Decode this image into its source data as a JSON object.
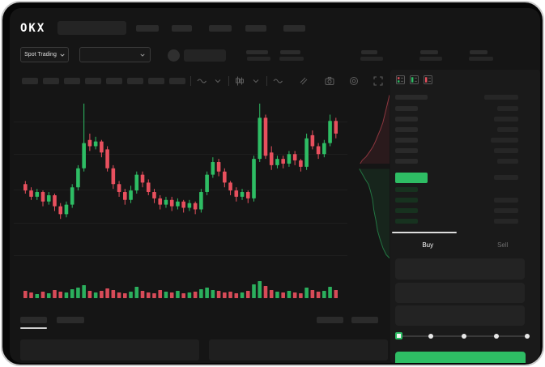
{
  "brand": {
    "logo_text": "OKX"
  },
  "ticker": {
    "market_selector_label": "Spot Trading"
  },
  "colors": {
    "up": "#2ebd64",
    "down": "#e8505e",
    "accent": "#2ebd64",
    "panel": "#1b1b1b"
  },
  "toolbar": {
    "icons": [
      "line-type-icon",
      "chevron-down-icon",
      "interval-dot-icon",
      "candle-type-icon",
      "chevron-down-icon",
      "indicator-wave-icon",
      "draw-lines-icon",
      "camera-icon",
      "settings-circle-icon",
      "fullscreen-icon"
    ]
  },
  "orderbook": {
    "view_mode_icons": [
      "book-combined-icon",
      "book-bids-icon",
      "book-asks-icon"
    ]
  },
  "trade_panel": {
    "buy_tab": "Buy",
    "sell_tab": "Sell"
  },
  "chart_data": {
    "type": "candlestick",
    "title": "",
    "x_axis": {
      "labels_visible": false
    },
    "y_axis": {
      "labels_visible": false,
      "price_scale": [
        0,
        100
      ]
    },
    "grid": "horizontal-faint",
    "candles": {
      "open": [
        46,
        42,
        38,
        41,
        35,
        39,
        32,
        27,
        33,
        44,
        56,
        74,
        70,
        73,
        68,
        56,
        46,
        41,
        36,
        42,
        52,
        47,
        41,
        37,
        33,
        36,
        32,
        35,
        31,
        34,
        30,
        41,
        52,
        60,
        54,
        47,
        42,
        38,
        41,
        37,
        62,
        88,
        66,
        58,
        62,
        59,
        65,
        61,
        57,
        77,
        70,
        65,
        72,
        86,
        78,
        84
      ],
      "close": [
        42,
        38,
        41,
        35,
        39,
        32,
        27,
        33,
        44,
        56,
        72,
        70,
        73,
        66,
        56,
        46,
        41,
        36,
        42,
        52,
        47,
        41,
        37,
        33,
        36,
        32,
        35,
        31,
        34,
        30,
        41,
        52,
        60,
        54,
        47,
        42,
        38,
        41,
        37,
        62,
        88,
        64,
        58,
        62,
        59,
        65,
        61,
        57,
        75,
        70,
        65,
        72,
        86,
        78,
        84,
        89
      ],
      "high": [
        48,
        44,
        43,
        42,
        41,
        40,
        34,
        35,
        46,
        58,
        97,
        78,
        76,
        74,
        70,
        58,
        48,
        43,
        45,
        54,
        54,
        49,
        43,
        39,
        38,
        38,
        37,
        36,
        36,
        35,
        43,
        54,
        63,
        62,
        56,
        48,
        44,
        43,
        42,
        64,
        97,
        90,
        70,
        64,
        64,
        67,
        67,
        62,
        78,
        80,
        72,
        74,
        90,
        88,
        86,
        97
      ],
      "low": [
        40,
        36,
        36,
        32,
        33,
        29,
        24,
        25,
        31,
        42,
        54,
        67,
        68,
        63,
        54,
        43,
        38,
        33,
        34,
        40,
        44,
        39,
        34,
        30,
        31,
        29,
        30,
        28,
        29,
        27,
        28,
        39,
        50,
        51,
        44,
        39,
        35,
        36,
        34,
        35,
        60,
        62,
        55,
        56,
        56,
        57,
        58,
        54,
        55,
        68,
        62,
        63,
        70,
        75,
        76,
        82
      ]
    },
    "volume": [
      9,
      7,
      5,
      8,
      6,
      10,
      8,
      7,
      11,
      13,
      16,
      9,
      7,
      9,
      12,
      10,
      7,
      6,
      8,
      14,
      9,
      7,
      6,
      10,
      8,
      7,
      9,
      6,
      7,
      8,
      11,
      13,
      10,
      9,
      7,
      8,
      6,
      7,
      9,
      17,
      21,
      15,
      10,
      8,
      7,
      9,
      7,
      6,
      13,
      10,
      8,
      9,
      14,
      10,
      8,
      11
    ],
    "depth": {
      "asks": [
        [
          1,
          0.02
        ],
        [
          0.96,
          0.06
        ],
        [
          0.92,
          0.1
        ],
        [
          0.88,
          0.14
        ],
        [
          0.84,
          0.18
        ],
        [
          0.78,
          0.22
        ],
        [
          0.71,
          0.26
        ],
        [
          0.66,
          0.29
        ],
        [
          0.6,
          0.32
        ],
        [
          0.52,
          0.35
        ],
        [
          0.43,
          0.38
        ],
        [
          0.34,
          0.4
        ],
        [
          0.29,
          0.42
        ]
      ],
      "bids": [
        [
          0.27,
          0.45
        ],
        [
          0.34,
          0.48
        ],
        [
          0.41,
          0.51
        ],
        [
          0.49,
          0.54
        ],
        [
          0.54,
          0.58
        ],
        [
          0.59,
          0.63
        ],
        [
          0.62,
          0.69
        ],
        [
          0.67,
          0.75
        ],
        [
          0.71,
          0.81
        ],
        [
          0.77,
          0.86
        ],
        [
          0.84,
          0.91
        ],
        [
          0.92,
          0.95
        ],
        [
          1,
          0.97
        ]
      ]
    }
  }
}
